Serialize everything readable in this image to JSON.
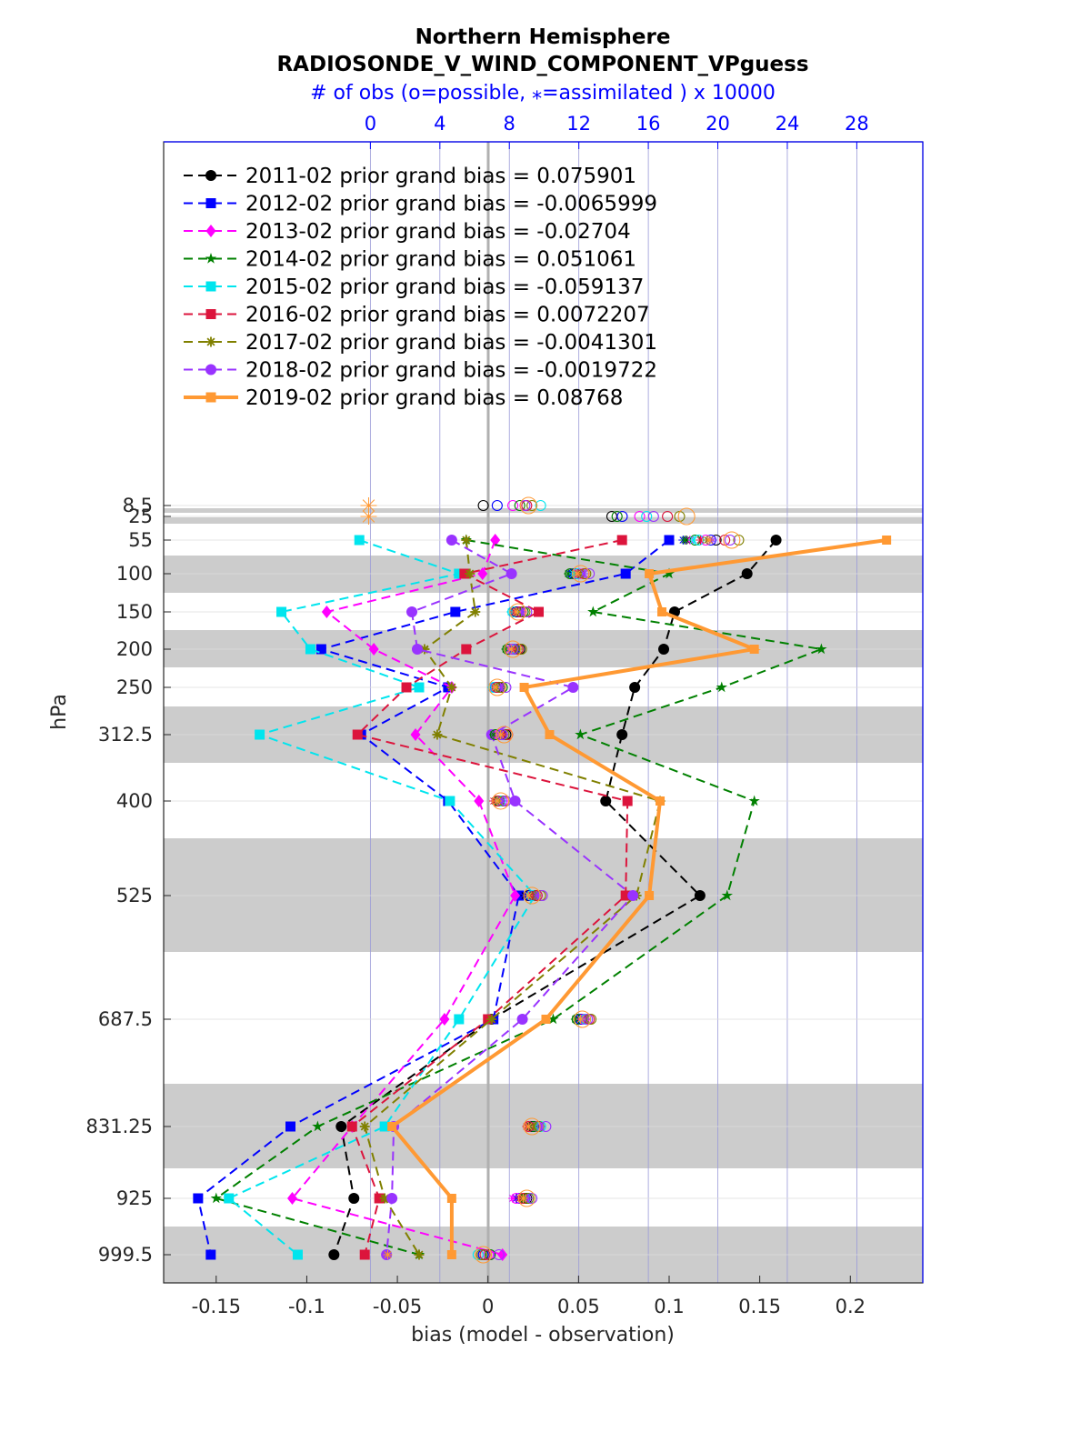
{
  "chart_data": {
    "type": "line",
    "title": "Northern Hemisphere",
    "subtitle": "RADIOSONDE_V_WIND_COMPONENT_VPguess",
    "top_axis_label": "# of obs (o=possible, ⁎=assimilated ) x 10000",
    "top_axis_ticks": [
      "0",
      "4",
      "8",
      "12",
      "16",
      "20",
      "24",
      "28"
    ],
    "top_axis_range": [
      -11.9,
      31.8
    ],
    "xlabel": "bias (model - observation)",
    "ylabel": "hPa",
    "xlim": [
      -0.179,
      0.24
    ],
    "x_ticks": [
      "-0.15",
      "-0.1",
      "-0.05",
      "0",
      "0.05",
      "0.1",
      "0.15",
      "0.2"
    ],
    "y_scale": "pressure (inverted, nonlinear)",
    "levels": [
      8.5,
      25,
      55,
      100,
      150,
      200,
      250,
      312.5,
      400,
      525,
      687.5,
      831.25,
      925,
      999.5
    ],
    "level_labels": [
      "8.5",
      "25",
      "55",
      "100",
      "150",
      "200",
      "250",
      "312.5",
      "400",
      "525",
      "687.5",
      "831.25",
      "925",
      "999.5"
    ],
    "grid": true,
    "shaded_layer_bands": true,
    "legend_position": "top-left",
    "series": [
      {
        "name": "2011-02 prior grand bias = 0.075901",
        "color": "#000000",
        "marker": "circle",
        "style": "dashed",
        "levels": [
          55,
          100,
          150,
          200,
          250,
          312.5,
          400,
          525,
          687.5,
          831.25,
          925,
          999.5
        ],
        "values": [
          0.159,
          0.143,
          0.103,
          0.097,
          0.081,
          0.074,
          0.065,
          0.117,
          0.002,
          -0.081,
          -0.074,
          -0.085
        ]
      },
      {
        "name": "2012-02 prior grand bias = -0.0065999",
        "color": "#0000ff",
        "marker": "square",
        "style": "dashed",
        "levels": [
          55,
          100,
          150,
          200,
          250,
          312.5,
          400,
          525,
          687.5,
          831.25,
          925,
          999.5
        ],
        "values": [
          0.1,
          0.076,
          -0.018,
          -0.092,
          -0.022,
          -0.07,
          -0.022,
          0.017,
          0.003,
          -0.109,
          -0.16,
          -0.153
        ]
      },
      {
        "name": "2013-02 prior grand bias = -0.02704",
        "color": "#ff00ff",
        "marker": "diamond",
        "style": "dashed",
        "levels": [
          55,
          100,
          150,
          200,
          250,
          312.5,
          400,
          525,
          687.5,
          831.25,
          925,
          999.5
        ],
        "values": [
          0.004,
          -0.003,
          -0.089,
          -0.063,
          -0.02,
          -0.04,
          -0.005,
          0.015,
          -0.024,
          -0.075,
          -0.108,
          0.008
        ]
      },
      {
        "name": "2014-02 prior grand bias = 0.051061",
        "color": "#008000",
        "marker": "star",
        "style": "dashed",
        "levels": [
          55,
          100,
          150,
          200,
          250,
          312.5,
          400,
          525,
          687.5,
          831.25,
          925,
          999.5
        ],
        "values": [
          -0.012,
          0.1,
          0.058,
          0.184,
          0.129,
          0.051,
          0.147,
          0.132,
          0.036,
          -0.094,
          -0.15,
          -0.038
        ]
      },
      {
        "name": "2015-02 prior grand bias = -0.059137",
        "color": "#00e5ee",
        "marker": "square",
        "style": "dashed",
        "levels": [
          55,
          100,
          150,
          200,
          250,
          312.5,
          400,
          525,
          687.5,
          831.25,
          925,
          999.5
        ],
        "values": [
          -0.071,
          -0.016,
          -0.114,
          -0.098,
          -0.038,
          -0.126,
          -0.021,
          0.026,
          -0.016,
          -0.057,
          -0.143,
          -0.105
        ]
      },
      {
        "name": "2016-02 prior grand bias = 0.0072207",
        "color": "#dc143c",
        "marker": "square",
        "style": "dashed",
        "levels": [
          55,
          100,
          150,
          200,
          250,
          312.5,
          400,
          525,
          687.5,
          831.25,
          925,
          999.5
        ],
        "values": [
          0.074,
          -0.013,
          0.028,
          -0.012,
          -0.045,
          -0.072,
          0.077,
          0.076,
          0.0,
          -0.075,
          -0.06,
          -0.068
        ]
      },
      {
        "name": "2017-02 prior grand bias = -0.0041301",
        "color": "#808000",
        "marker": "asterisk",
        "style": "dashed",
        "levels": [
          55,
          100,
          150,
          200,
          250,
          312.5,
          400,
          525,
          687.5,
          831.25,
          925,
          999.5
        ],
        "values": [
          -0.012,
          -0.01,
          -0.007,
          -0.035,
          -0.02,
          -0.028,
          0.095,
          0.082,
          0.002,
          -0.068,
          -0.057,
          -0.038
        ]
      },
      {
        "name": "2018-02 prior grand bias = -0.0019722",
        "color": "#9933ff",
        "marker": "circle",
        "style": "dashed",
        "levels": [
          55,
          100,
          150,
          200,
          250,
          312.5,
          400,
          525,
          687.5,
          831.25,
          925,
          999.5
        ],
        "values": [
          -0.02,
          0.013,
          -0.042,
          -0.039,
          0.047,
          0.002,
          0.015,
          0.08,
          0.019,
          -0.052,
          -0.053,
          -0.056
        ]
      },
      {
        "name": "2019-02 prior grand bias = 0.08768",
        "color": "#ff9933",
        "marker": "square",
        "style": "solid",
        "levels": [
          55,
          100,
          150,
          200,
          250,
          312.5,
          400,
          525,
          687.5,
          831.25,
          925,
          999.5
        ],
        "values": [
          0.22,
          0.089,
          0.096,
          0.147,
          0.02,
          0.034,
          0.095,
          0.089,
          0.032,
          -0.053,
          -0.02,
          -0.02
        ]
      }
    ],
    "obs_counts": {
      "note": "open circles = possible, asterisks = assimilated, values x 10000 on top axis",
      "levels": [
        8.5,
        25,
        55,
        100,
        150,
        200,
        250,
        312.5,
        400,
        525,
        687.5,
        831.25,
        925,
        999.5
      ],
      "by_year_possible": [
        [
          6.5,
          13.9,
          19.9,
          11.8,
          8.4,
          8.6,
          7.4,
          7.8,
          7.3,
          9.1,
          12.2,
          9.3,
          9.0,
          6.5
        ],
        [
          7.3,
          14.5,
          19.6,
          11.7,
          8.5,
          8.3,
          7.2,
          7.5,
          7.4,
          9.2,
          12.1,
          9.4,
          8.6,
          6.5
        ],
        [
          8.2,
          15.5,
          19.3,
          12.0,
          8.7,
          8.0,
          7.3,
          7.4,
          7.6,
          9.4,
          12.3,
          9.6,
          8.4,
          6.8
        ],
        [
          8.6,
          14.2,
          18.7,
          11.5,
          8.8,
          7.9,
          7.6,
          7.2,
          7.4,
          9.5,
          11.9,
          9.4,
          8.9,
          6.9
        ],
        [
          9.8,
          15.9,
          18.9,
          11.9,
          8.2,
          8.4,
          7.1,
          7.6,
          7.5,
          9.3,
          12.4,
          9.8,
          9.2,
          6.2
        ],
        [
          9.0,
          17.1,
          20.4,
          12.3,
          8.6,
          8.5,
          7.3,
          7.9,
          7.3,
          9.6,
          12.6,
          9.1,
          8.8,
          6.6
        ],
        [
          9.3,
          17.8,
          21.2,
          12.4,
          8.9,
          8.7,
          7.5,
          7.7,
          7.7,
          9.8,
          12.7,
          9.7,
          9.1,
          6.4
        ],
        [
          8.9,
          16.3,
          20.7,
          12.6,
          9.0,
          8.2,
          7.8,
          7.6,
          7.8,
          9.9,
          12.5,
          10.1,
          9.3,
          7.4
        ],
        [
          9.1,
          18.2,
          20.8,
          12.1,
          8.5,
          8.2,
          7.3,
          7.7,
          7.5,
          9.3,
          12.2,
          9.3,
          9.0,
          6.5
        ]
      ],
      "by_year_assimilated": [
        [
          0,
          0,
          18.2,
          11.6,
          8.3,
          8.4,
          7.2,
          7.6,
          7.2,
          8.9,
          12.0,
          9.1,
          8.8,
          1.0
        ],
        [
          0,
          0,
          18.0,
          11.5,
          8.2,
          8.2,
          7.0,
          7.4,
          7.2,
          9.0,
          11.9,
          9.2,
          8.4,
          1.0
        ],
        [
          0,
          0,
          18.4,
          11.8,
          8.4,
          8.0,
          7.1,
          7.3,
          7.3,
          9.1,
          12.1,
          9.3,
          8.2,
          1.0
        ],
        [
          0,
          0,
          18.1,
          11.4,
          8.5,
          7.8,
          7.3,
          7.1,
          7.2,
          9.2,
          11.8,
          9.2,
          8.7,
          1.0
        ],
        [
          0,
          0,
          18.6,
          11.7,
          8.1,
          8.3,
          7.0,
          7.5,
          7.3,
          9.1,
          12.2,
          9.5,
          9.0,
          1.0
        ],
        [
          0,
          0,
          19.0,
          12.0,
          8.3,
          8.3,
          7.2,
          7.7,
          7.1,
          9.3,
          12.3,
          9.0,
          8.6,
          1.0
        ],
        [
          0,
          0,
          19.4,
          12.1,
          8.6,
          8.5,
          7.3,
          7.5,
          7.5,
          9.5,
          12.4,
          9.4,
          8.9,
          1.0
        ],
        [
          0,
          0,
          19.7,
          12.3,
          8.7,
          8.1,
          7.5,
          7.4,
          7.6,
          9.6,
          12.3,
          9.8,
          9.1,
          1.0
        ],
        [
          -0.1,
          -0.1,
          19.5,
          11.9,
          8.4,
          8.1,
          7.2,
          7.5,
          7.3,
          9.1,
          12.1,
          9.1,
          8.8,
          1.0
        ]
      ]
    }
  }
}
